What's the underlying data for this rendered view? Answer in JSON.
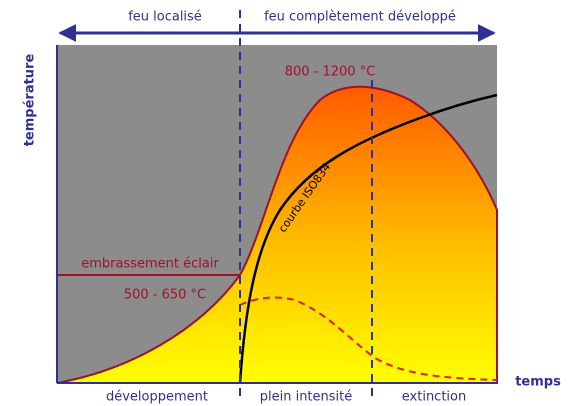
{
  "header": {
    "phases": [
      "feu localisé",
      "feu complètement développé"
    ]
  },
  "axes": {
    "y": "température",
    "x": "temps"
  },
  "annotations": {
    "peak": "800 - 1200 °C",
    "iso": "courbe ISO834",
    "flashover": "embrassement éclair",
    "flashover_range": "500 - 650 °C"
  },
  "stages": [
    "développement",
    "plein intensité",
    "extinction"
  ]
}
